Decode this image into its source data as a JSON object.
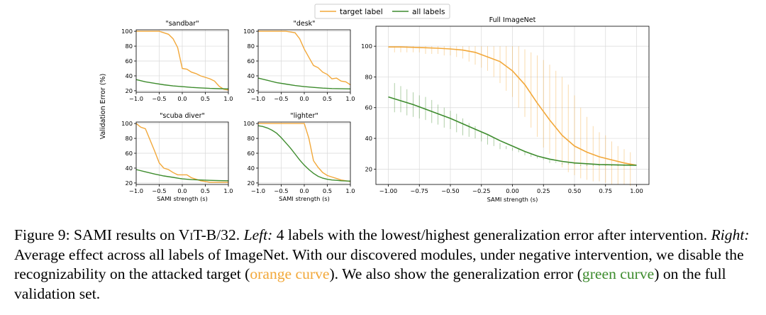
{
  "legend": {
    "target_label": "target label",
    "all_labels": "all labels"
  },
  "colors": {
    "target": "#f2a83a",
    "all": "#3e8c2e",
    "grid": "#d9d9d9",
    "axis": "#000000"
  },
  "shared_ylabel": "Validation Error (%)",
  "chart_data": [
    {
      "type": "line",
      "title": "\"sandbar\"",
      "xlabel": "",
      "xlim": [
        -1.0,
        1.0
      ],
      "ylim": [
        18,
        102
      ],
      "xticks": [
        -1.0,
        -0.5,
        0.0,
        0.5,
        1.0
      ],
      "xtick_labels": [
        "−1.0",
        "−0.5",
        "0.0",
        "0.5",
        "1.0"
      ],
      "yticks": [
        20,
        40,
        60,
        80,
        100
      ],
      "series": [
        {
          "name": "target label",
          "x": [
            -1.0,
            -0.9,
            -0.8,
            -0.7,
            -0.6,
            -0.5,
            -0.4,
            -0.3,
            -0.2,
            -0.1,
            0.0,
            0.1,
            0.2,
            0.3,
            0.4,
            0.5,
            0.6,
            0.7,
            0.8,
            0.9,
            1.0
          ],
          "y": [
            100,
            100,
            100,
            100,
            100,
            100,
            98,
            96,
            90,
            78,
            50,
            49,
            45,
            43,
            40,
            38,
            36,
            33,
            26,
            22,
            21
          ]
        },
        {
          "name": "all labels",
          "x": [
            -1.0,
            -0.8,
            -0.6,
            -0.4,
            -0.2,
            0.0,
            0.2,
            0.4,
            0.6,
            0.8,
            1.0
          ],
          "y": [
            35,
            32,
            30,
            28,
            26.5,
            25.5,
            24.5,
            23.8,
            23.2,
            22.8,
            22.5
          ]
        }
      ]
    },
    {
      "type": "line",
      "title": "\"desk\"",
      "xlabel": "",
      "xlim": [
        -1.0,
        1.0
      ],
      "ylim": [
        18,
        102
      ],
      "xticks": [
        -1.0,
        -0.5,
        0.0,
        0.5,
        1.0
      ],
      "xtick_labels": [
        "−1.0",
        "−0.5",
        "0.0",
        "0.5",
        "1.0"
      ],
      "yticks": [
        20,
        40,
        60,
        80,
        100
      ],
      "series": [
        {
          "name": "target label",
          "x": [
            -1.0,
            -0.9,
            -0.8,
            -0.7,
            -0.6,
            -0.5,
            -0.4,
            -0.3,
            -0.2,
            -0.1,
            0.0,
            0.1,
            0.2,
            0.3,
            0.4,
            0.5,
            0.6,
            0.7,
            0.8,
            0.9,
            1.0
          ],
          "y": [
            100,
            100,
            100,
            100,
            100,
            100,
            100,
            99,
            98,
            90,
            76,
            65,
            54,
            51,
            45,
            42,
            36,
            37,
            33,
            32,
            28
          ]
        },
        {
          "name": "all labels",
          "x": [
            -1.0,
            -0.8,
            -0.6,
            -0.4,
            -0.2,
            0.0,
            0.2,
            0.4,
            0.6,
            0.8,
            1.0
          ],
          "y": [
            37,
            34,
            31,
            29,
            27,
            25.5,
            24.5,
            23.5,
            23,
            22.7,
            22.5
          ]
        }
      ]
    },
    {
      "type": "line",
      "title": "\"scuba diver\"",
      "xlabel": "SAMI strength (s)",
      "xlim": [
        -1.0,
        1.0
      ],
      "ylim": [
        18,
        102
      ],
      "xticks": [
        -1.0,
        -0.5,
        0.0,
        0.5,
        1.0
      ],
      "xtick_labels": [
        "−1.0",
        "−0.5",
        "0.0",
        "0.5",
        "1.0"
      ],
      "yticks": [
        20,
        40,
        60,
        80,
        100
      ],
      "series": [
        {
          "name": "target label",
          "x": [
            -1.0,
            -0.9,
            -0.8,
            -0.7,
            -0.6,
            -0.5,
            -0.4,
            -0.3,
            -0.2,
            -0.1,
            0.0,
            0.1,
            0.2,
            0.3,
            0.4,
            0.5,
            0.6,
            0.7,
            0.8,
            0.9,
            1.0
          ],
          "y": [
            100,
            95,
            93,
            78,
            63,
            47,
            40,
            38,
            34,
            31,
            31,
            31,
            27,
            25,
            23,
            22,
            21,
            21,
            21,
            21,
            21
          ]
        },
        {
          "name": "all labels",
          "x": [
            -1.0,
            -0.8,
            -0.6,
            -0.4,
            -0.2,
            0.0,
            0.2,
            0.4,
            0.6,
            0.8,
            1.0
          ],
          "y": [
            38,
            35,
            32,
            29.5,
            27.5,
            25.5,
            24.5,
            24,
            23.5,
            23.2,
            23
          ]
        }
      ]
    },
    {
      "type": "line",
      "title": "\"lighter\"",
      "xlabel": "SAMI strength (s)",
      "xlim": [
        -1.0,
        1.0
      ],
      "ylim": [
        18,
        102
      ],
      "xticks": [
        -1.0,
        -0.5,
        0.0,
        0.5,
        1.0
      ],
      "xtick_labels": [
        "−1.0",
        "−0.5",
        "0.0",
        "0.5",
        "1.0"
      ],
      "yticks": [
        20,
        40,
        60,
        80,
        100
      ],
      "series": [
        {
          "name": "target label",
          "x": [
            -1.0,
            -0.9,
            -0.8,
            -0.7,
            -0.6,
            -0.5,
            -0.4,
            -0.3,
            -0.2,
            -0.1,
            0.0,
            0.1,
            0.2,
            0.3,
            0.4,
            0.5,
            0.6,
            0.7,
            0.8,
            0.9,
            1.0
          ],
          "y": [
            100,
            100,
            100,
            100,
            100,
            100,
            100,
            100,
            100,
            100,
            100,
            80,
            50,
            41,
            34,
            30,
            28,
            26,
            24,
            23,
            22
          ]
        },
        {
          "name": "all labels",
          "x": [
            -1.0,
            -0.9,
            -0.8,
            -0.7,
            -0.6,
            -0.5,
            -0.4,
            -0.3,
            -0.2,
            -0.1,
            0.0,
            0.1,
            0.2,
            0.3,
            0.4,
            0.5,
            0.6,
            0.7,
            0.8,
            0.9,
            1.0
          ],
          "y": [
            97,
            96,
            94,
            91,
            87,
            81,
            74,
            67,
            59,
            51,
            44,
            38,
            33,
            29,
            26.5,
            25,
            24,
            23.5,
            23,
            22.7,
            22.5
          ]
        }
      ]
    },
    {
      "type": "line",
      "title": "Full ImageNet",
      "xlabel": "SAMI strength (s)",
      "xlim": [
        -1.1,
        1.1
      ],
      "ylim": [
        10,
        113
      ],
      "xticks": [
        -1.0,
        -0.75,
        -0.5,
        -0.25,
        0.0,
        0.25,
        0.5,
        0.75,
        1.0
      ],
      "xtick_labels": [
        "−1.00",
        "−0.75",
        "−0.50",
        "−0.25",
        "0.00",
        "0.25",
        "0.50",
        "0.75",
        "1.00"
      ],
      "yticks": [
        20,
        40,
        60,
        80,
        100
      ],
      "series": [
        {
          "name": "target label",
          "x": [
            -1.0,
            -0.9,
            -0.8,
            -0.7,
            -0.6,
            -0.5,
            -0.4,
            -0.3,
            -0.2,
            -0.1,
            0.0,
            0.1,
            0.2,
            0.3,
            0.4,
            0.5,
            0.6,
            0.7,
            0.8,
            0.9,
            1.0
          ],
          "y": [
            99.5,
            99.5,
            99.3,
            99,
            98.7,
            98.2,
            97.5,
            96,
            93,
            90,
            84,
            75,
            63,
            52,
            42,
            35,
            31,
            28,
            26,
            24,
            22.5
          ],
          "err_x": [
            -0.95,
            -0.9,
            -0.85,
            -0.8,
            -0.75,
            -0.7,
            -0.65,
            -0.6,
            -0.55,
            -0.5,
            -0.45,
            -0.4,
            -0.35,
            -0.3,
            -0.25,
            -0.2,
            -0.15,
            -0.1,
            -0.05,
            0.0,
            0.05,
            0.1,
            0.15,
            0.2,
            0.25,
            0.3,
            0.35,
            0.4,
            0.45,
            0.5,
            0.55,
            0.6,
            0.65,
            0.7,
            0.75,
            0.8,
            0.85,
            0.9,
            0.95
          ],
          "err_lo": [
            96,
            96,
            96,
            96,
            96,
            95,
            95,
            95,
            94,
            94,
            93,
            92,
            90,
            88,
            86,
            84,
            80,
            76,
            71,
            67,
            60,
            54,
            47,
            41,
            34,
            30,
            26,
            21,
            18,
            16,
            14,
            13,
            12,
            12,
            11,
            10,
            10,
            10,
            9
          ],
          "err_hi": [
            100,
            100,
            100,
            100,
            100,
            100,
            100,
            100,
            100,
            100,
            100,
            100,
            100,
            100,
            100,
            100,
            100,
            100,
            100,
            100,
            100,
            98,
            96,
            94,
            91,
            88,
            84,
            80,
            75,
            68,
            60,
            54,
            48,
            44,
            42,
            38,
            35,
            33,
            31
          ]
        },
        {
          "name": "all labels",
          "x": [
            -1.0,
            -0.9,
            -0.8,
            -0.7,
            -0.6,
            -0.5,
            -0.4,
            -0.3,
            -0.2,
            -0.1,
            0.0,
            0.1,
            0.2,
            0.3,
            0.4,
            0.5,
            0.6,
            0.7,
            0.8,
            0.9,
            1.0
          ],
          "y": [
            67,
            64.5,
            62,
            59,
            56,
            53,
            49.5,
            46,
            42.5,
            38.5,
            35,
            31.5,
            28.5,
            26.5,
            25,
            24,
            23.5,
            23,
            22.8,
            22.6,
            22.5
          ],
          "err_x": [
            -0.95,
            -0.9,
            -0.85,
            -0.8,
            -0.75,
            -0.7,
            -0.65,
            -0.6,
            -0.55,
            -0.5,
            -0.45,
            -0.4,
            -0.35,
            -0.3,
            -0.25,
            -0.2,
            -0.15,
            -0.1,
            -0.05,
            0.0,
            0.05,
            0.1,
            0.15,
            0.2,
            0.25,
            0.3,
            0.35,
            0.4,
            0.45,
            0.5,
            0.55,
            0.6,
            0.65,
            0.7,
            0.75,
            0.8,
            0.85,
            0.9,
            0.95
          ],
          "err_lo": [
            57,
            57,
            55,
            54,
            53,
            52,
            50,
            49,
            47,
            46,
            44,
            42,
            41,
            40,
            38,
            36,
            35,
            33,
            33,
            32,
            31,
            29,
            28,
            27,
            26,
            24,
            24,
            23,
            23,
            23,
            22,
            22,
            22,
            22,
            22,
            22,
            22,
            22,
            22
          ],
          "err_hi": [
            76,
            74,
            72,
            70,
            68,
            67,
            65,
            62,
            60,
            58,
            56,
            53,
            50,
            48,
            44,
            42,
            40,
            37,
            35,
            34,
            33,
            31,
            30,
            28,
            27,
            26,
            25,
            24,
            24,
            24,
            23,
            23,
            23,
            23,
            23,
            23,
            23,
            23,
            23
          ]
        }
      ]
    }
  ],
  "caption": {
    "fig_label": "Figure 9: SAMI results on ",
    "model_v": "V",
    "model_it": "i",
    "model_t": "T",
    "model_rest": "-B/32. ",
    "left_label": "Left:",
    "left_text": " 4 labels with the lowest/highest generalization error after intervention. ",
    "right_label": "Right:",
    "right_text": " Average effect across all labels of ImageNet. With our discovered modules, under negative intervention, we disable the recognizability on the attacked target (",
    "orange_text": "orange curve",
    "mid_text": "). We also show the generalization error (",
    "green_text": "green curve",
    "end_text": ") on the full validation set."
  }
}
